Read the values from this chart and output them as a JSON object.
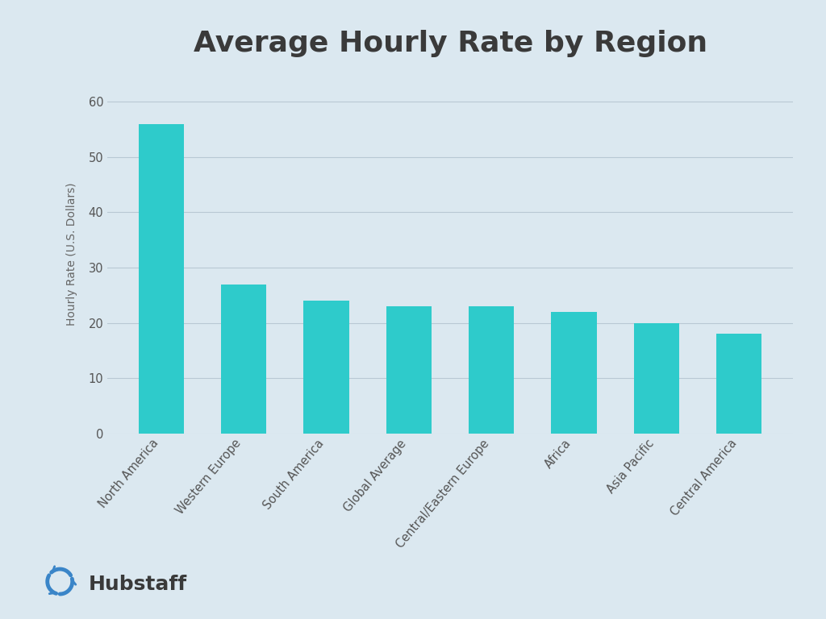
{
  "title": "Average Hourly Rate by Region",
  "categories": [
    "North America",
    "Western Europe",
    "South America",
    "Global Average",
    "Central/Eastern Europe",
    "Africa",
    "Asia Pacific",
    "Central America"
  ],
  "values": [
    56,
    27,
    24,
    23,
    23,
    22,
    20,
    18
  ],
  "bar_color": "#2ECBCB",
  "background_color": "#dbe8f0",
  "plot_bg_color": "#dbe8f0",
  "title_fontsize": 26,
  "title_color": "#3a3a3a",
  "ylabel": "Hourly Rate (U.S. Dollars)",
  "ylabel_fontsize": 10,
  "ylabel_color": "#666666",
  "tick_label_fontsize": 10.5,
  "tick_color": "#555555",
  "ytick_values": [
    0,
    10,
    20,
    30,
    40,
    50,
    60
  ],
  "ylim": [
    0,
    65
  ],
  "grid_color": "#b8c8d4",
  "grid_linewidth": 0.8,
  "bar_width": 0.55,
  "logo_text": "Hubstaff",
  "logo_icon_color": "#3a85c8",
  "logo_text_color": "#3a3a3a"
}
